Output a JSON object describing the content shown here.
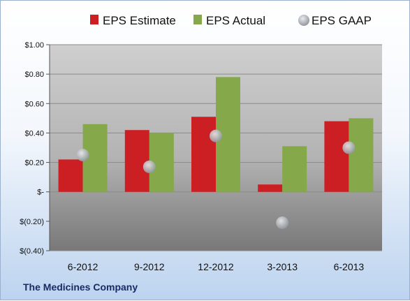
{
  "chart_data": {
    "type": "bar",
    "categories": [
      "6-2012",
      "9-2012",
      "12-2012",
      "3-2013",
      "6-2013"
    ],
    "series": [
      {
        "name": "EPS Estimate",
        "kind": "bar",
        "color": "#cc1f24",
        "values": [
          0.22,
          0.42,
          0.51,
          0.05,
          0.48
        ]
      },
      {
        "name": "EPS Actual",
        "kind": "bar",
        "color": "#84a84a",
        "values": [
          0.46,
          0.4,
          0.78,
          0.31,
          0.5
        ]
      },
      {
        "name": "EPS GAAP",
        "kind": "marker",
        "color": "#b8bcc2",
        "values": [
          0.25,
          0.17,
          0.38,
          -0.21,
          0.3
        ]
      }
    ],
    "ylim": [
      -0.4,
      1.0
    ],
    "yticks": [
      1.0,
      0.8,
      0.6,
      0.4,
      0.2,
      0,
      -0.2,
      -0.4
    ],
    "ytick_labels": [
      "$1.00",
      "$0.80",
      "$0.60",
      "$0.40",
      "$0.20",
      "$-",
      "$(0.20)",
      "$(0.40)"
    ],
    "grid": true,
    "legend_position": "top"
  },
  "footer": {
    "company": "The Medicines Company"
  },
  "colors": {
    "plot_top": "#c9c9c9",
    "plot_bottom": "#7d7d7d",
    "grid": "#8a8a8a",
    "frame": "#9bb0cc"
  }
}
